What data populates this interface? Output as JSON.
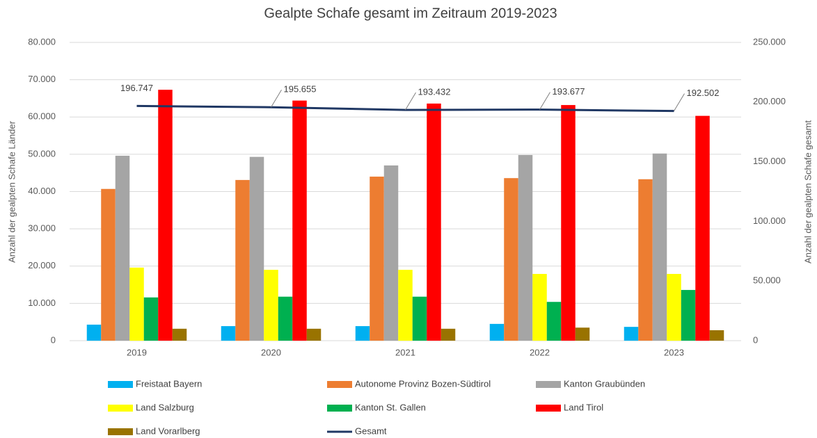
{
  "chart_data": {
    "type": "bar_line",
    "title": "Gealpte Schafe gesamt im Zeitraum 2019-2023",
    "ylabel": "Anzahl der gealpten Schafe Länder",
    "y2label": "Anzahl der gealpten Schafe gesamt",
    "categories": [
      "2019",
      "2020",
      "2021",
      "2022",
      "2023"
    ],
    "ylim": [
      0,
      80000
    ],
    "yticks": [
      0,
      {
        "value": 10000,
        "label": "10.000"
      },
      {
        "value": 20000,
        "label": "20.000"
      },
      {
        "value": 30000,
        "label": "30.000"
      },
      {
        "value": 40000,
        "label": "40.000"
      },
      {
        "value": 50000,
        "label": "50.000"
      },
      {
        "value": 60000,
        "label": "60.000"
      },
      {
        "value": 70000,
        "label": "70.000"
      },
      {
        "value": 80000,
        "label": "80.000"
      }
    ],
    "y2lim": [
      0,
      250000
    ],
    "y2ticks": [
      0,
      {
        "value": 50000,
        "label": "50.000"
      },
      {
        "value": 100000,
        "label": "100.000"
      },
      {
        "value": 150000,
        "label": "150.000"
      },
      {
        "value": 200000,
        "label": "200.000"
      },
      {
        "value": 250000,
        "label": "250.000"
      }
    ],
    "grid": true,
    "series": [
      {
        "name": "Freistaat Bayern",
        "color": "#00b0f0",
        "type": "bar",
        "values": [
          4300,
          3900,
          3900,
          4500,
          3700
        ]
      },
      {
        "name": "Autonome Provinz Bozen-Südtirol",
        "color": "#ed7d31",
        "type": "bar",
        "values": [
          40700,
          43100,
          44000,
          43600,
          43300
        ]
      },
      {
        "name": "Kanton Graubünden",
        "color": "#a5a5a5",
        "type": "bar",
        "values": [
          49600,
          49300,
          47000,
          49800,
          50200
        ]
      },
      {
        "name": "Land Salzburg",
        "color": "#ffff00",
        "type": "bar",
        "values": [
          19600,
          19000,
          19000,
          17900,
          17900
        ]
      },
      {
        "name": "Kanton St. Gallen",
        "color": "#00b050",
        "type": "bar",
        "values": [
          11600,
          11800,
          11800,
          10400,
          13600
        ]
      },
      {
        "name": "Land Tirol",
        "color": "#ff0000",
        "type": "bar",
        "values": [
          67300,
          64400,
          63600,
          63200,
          60300
        ]
      },
      {
        "name": "Land Vorarlberg",
        "color": "#997300",
        "type": "bar",
        "values": [
          3200,
          3200,
          3200,
          3500,
          2800
        ]
      },
      {
        "name": "Gesamt",
        "color": "#203864",
        "type": "line",
        "axis": "y2",
        "values": [
          196747,
          195655,
          193432,
          193677,
          192502
        ],
        "value_labels": [
          "196.747",
          "195.655",
          "193.432",
          "193.677",
          "192.502"
        ]
      }
    ]
  }
}
